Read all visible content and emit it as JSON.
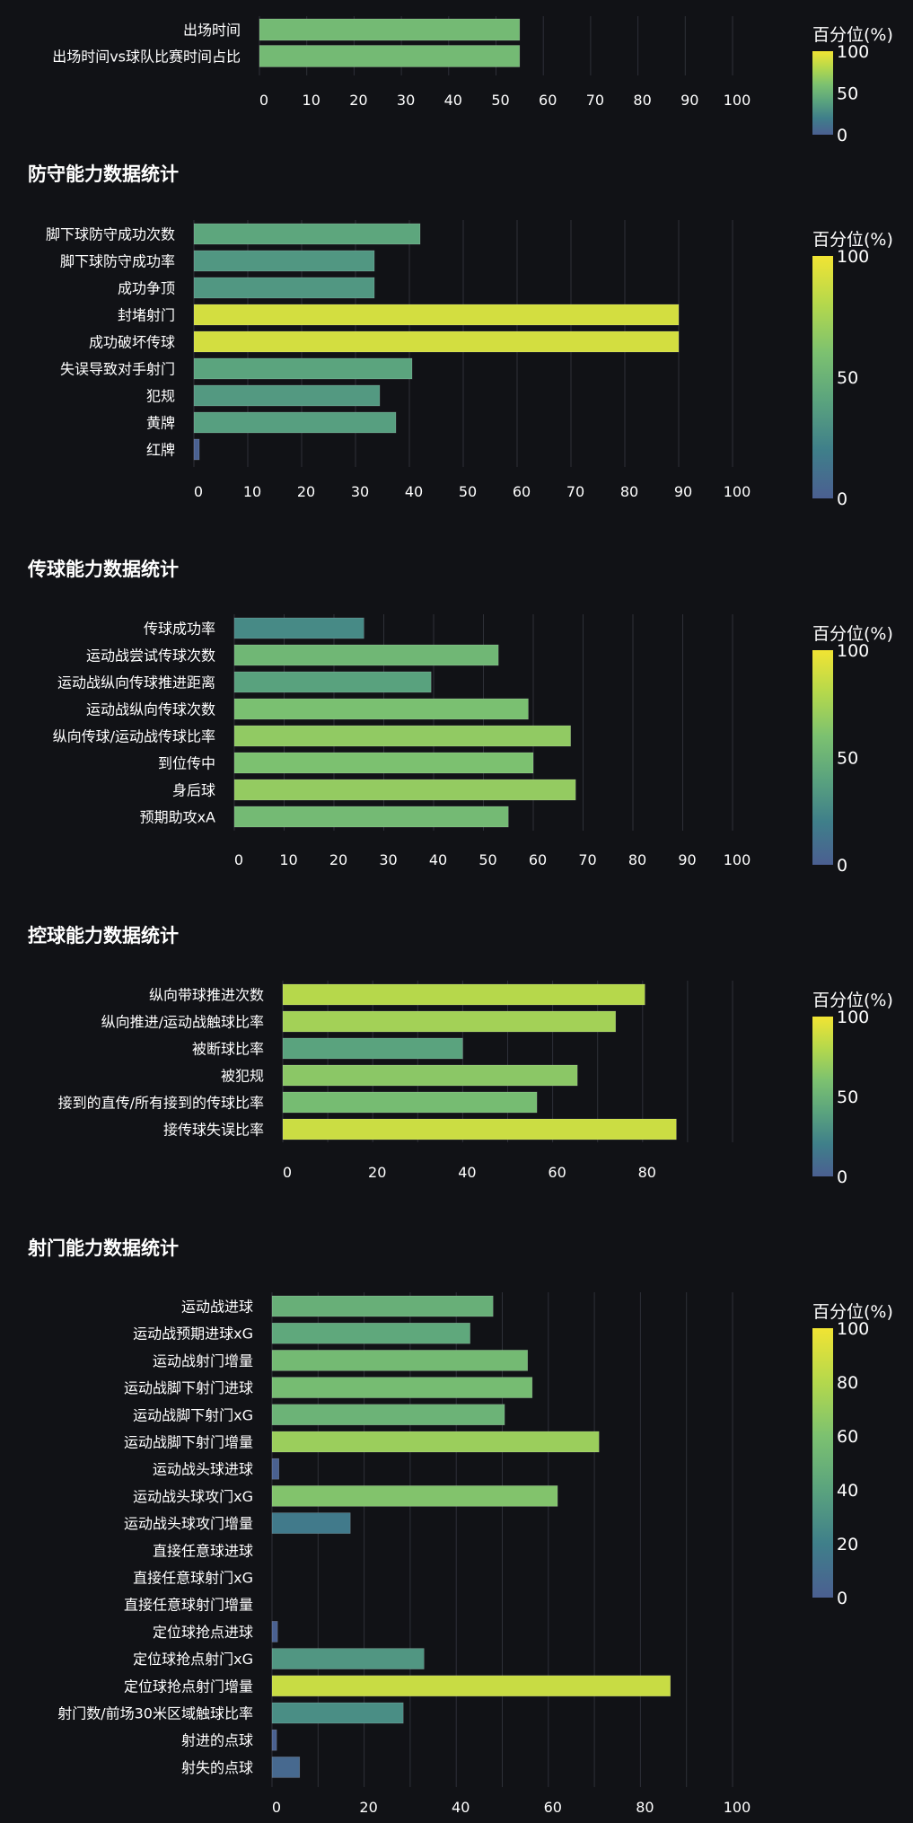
{
  "colorbar_label": "百分位(%)",
  "colormap": [
    "#4b5f91",
    "#3f7f8a",
    "#5aa37e",
    "#7cc170",
    "#b4d84c",
    "#f1e433"
  ],
  "chart_data": [
    {
      "type": "bar",
      "orientation": "horizontal",
      "title": "",
      "categories": [
        "出场时间",
        "出场时间vs球队比赛时间占比"
      ],
      "values": [
        55,
        55
      ],
      "xlim": [
        0,
        100
      ],
      "xticks": [
        0,
        10,
        20,
        30,
        40,
        50,
        60,
        70,
        80,
        90,
        100
      ],
      "colorbar_ticks": [
        0,
        50,
        100
      ],
      "grid": true
    },
    {
      "type": "bar",
      "orientation": "horizontal",
      "title": "防守能力数据统计",
      "categories": [
        "脚下球防守成功次数",
        "脚下球防守成功率",
        "成功争顶",
        "封堵射门",
        "成功破坏传球",
        "失误导致对手射门",
        "犯规",
        "黄牌",
        "红牌"
      ],
      "values": [
        42,
        33.5,
        33.5,
        90,
        90,
        40.5,
        34.5,
        37.5,
        1
      ],
      "xlim": [
        0,
        100
      ],
      "xticks": [
        0,
        10,
        20,
        30,
        40,
        50,
        60,
        70,
        80,
        90,
        100
      ],
      "colorbar_ticks": [
        0,
        50,
        100
      ],
      "grid": true
    },
    {
      "type": "bar",
      "orientation": "horizontal",
      "title": "传球能力数据统计",
      "categories": [
        "传球成功率",
        "运动战尝试传球次数",
        "运动战纵向传球推进距离",
        "运动战纵向传球次数",
        "纵向传球/运动战传球比率",
        "到位传中",
        "身后球",
        "预期助攻xA"
      ],
      "values": [
        26,
        53,
        39.5,
        59,
        67.5,
        60,
        68.5,
        55
      ],
      "xlim": [
        0,
        100
      ],
      "xticks": [
        0,
        10,
        20,
        30,
        40,
        50,
        60,
        70,
        80,
        90,
        100
      ],
      "colorbar_ticks": [
        0,
        50,
        100
      ],
      "grid": true
    },
    {
      "type": "bar",
      "orientation": "horizontal",
      "title": "控球能力数据统计",
      "categories": [
        "纵向带球推进次数",
        "纵向推进/运动战触球比率",
        "被断球比率",
        "被犯规",
        "接到的直传/所有接到的传球比率",
        "接传球失误比率"
      ],
      "values": [
        80.5,
        74,
        40,
        65.5,
        56.5,
        87.5
      ],
      "xlim": [
        0,
        100
      ],
      "xticks": [
        0,
        20,
        40,
        60,
        80
      ],
      "colorbar_ticks": [
        0,
        50,
        100
      ],
      "grid": true
    },
    {
      "type": "bar",
      "orientation": "horizontal",
      "title": "射门能力数据统计",
      "categories": [
        "运动战进球",
        "运动战预期进球xG",
        "运动战射门增量",
        "运动战脚下射门进球",
        "运动战脚下射门xG",
        "运动战脚下射门增量",
        "运动战头球进球",
        "运动战头球攻门xG",
        "运动战头球攻门增量",
        "直接任意球进球",
        "直接任意球射门xG",
        "直接任意球射门增量",
        "定位球抢点进球",
        "定位球抢点射门xG",
        "定位球抢点射门增量",
        "射门数/前场30米区域触球比率",
        "射进的点球",
        "射失的点球"
      ],
      "values": [
        48,
        43,
        55.5,
        56.5,
        50.5,
        71,
        1.5,
        62,
        17,
        0,
        0,
        0,
        1.2,
        33,
        86.5,
        28.5,
        1,
        6
      ],
      "xlim": [
        0,
        100
      ],
      "xticks": [
        0,
        20,
        40,
        60,
        80,
        100
      ],
      "colorbar_ticks": [
        0,
        20,
        40,
        60,
        80,
        100
      ],
      "grid": true
    }
  ]
}
